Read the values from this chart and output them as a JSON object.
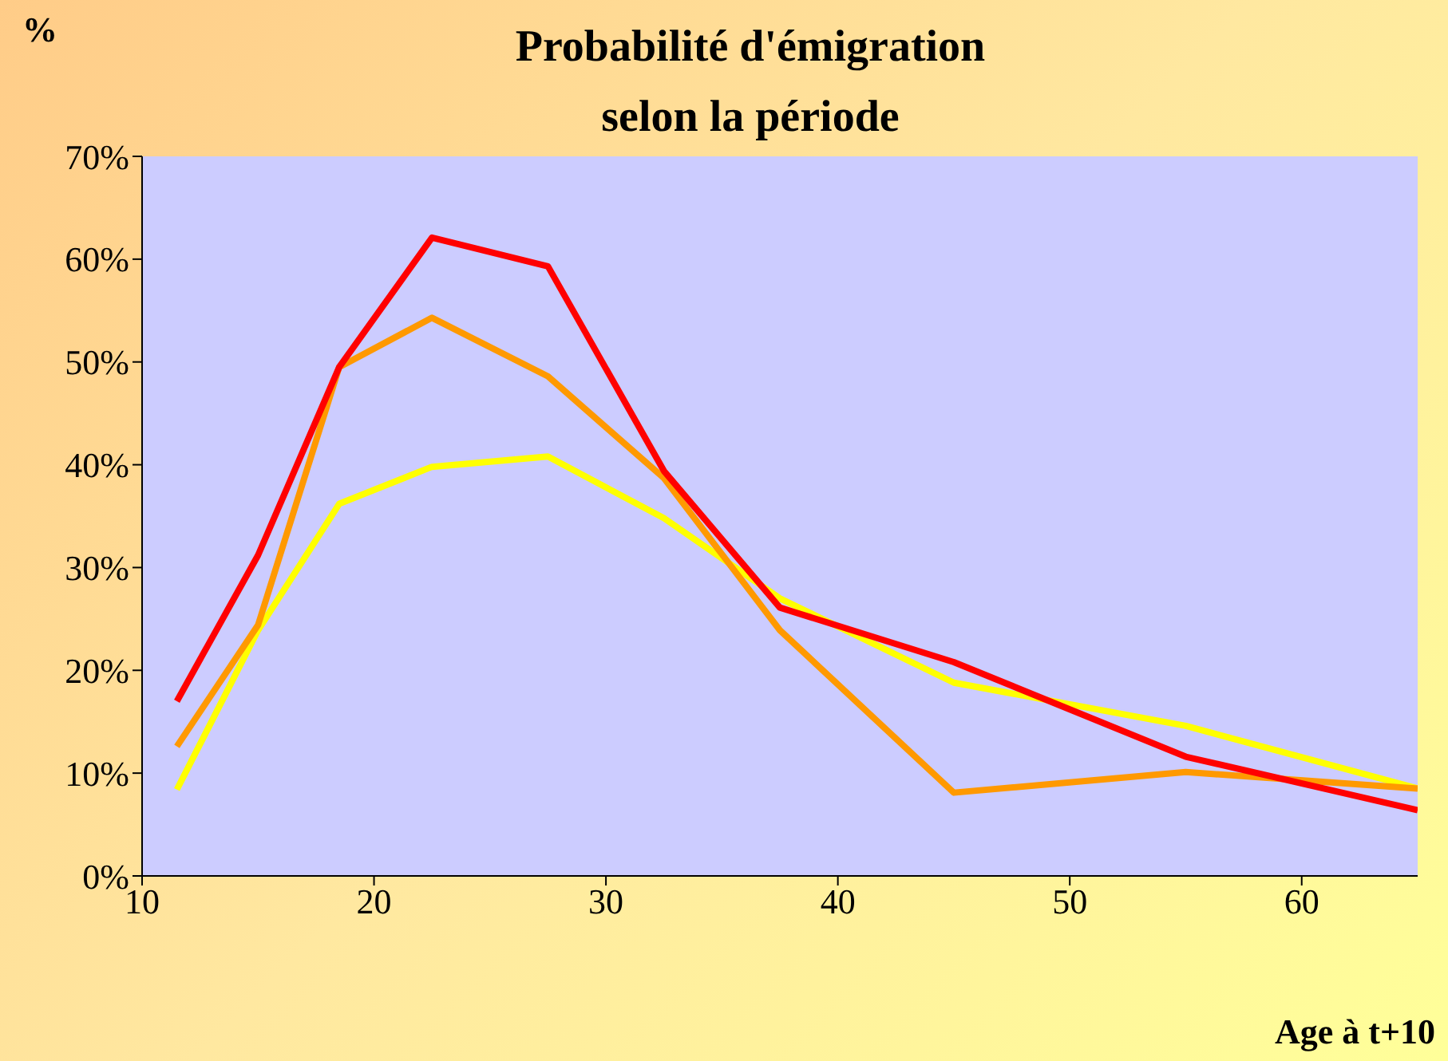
{
  "chart_data": {
    "type": "line",
    "title": "Probabilité d'émigration\nselon la période",
    "ylabel": "%",
    "xlabel": "Age à t+10",
    "x": [
      11.5,
      15,
      18.5,
      22.5,
      27.5,
      32.5,
      37.5,
      45,
      55,
      65
    ],
    "series": [
      {
        "color": "#ffff00",
        "values": [
          8.4,
          23.9,
          36.2,
          39.8,
          40.8,
          34.8,
          27,
          18.8,
          14.6,
          8.5
        ]
      },
      {
        "color": "#ff9900",
        "values": [
          12.6,
          24.4,
          49.5,
          54.3,
          48.6,
          38.7,
          23.9,
          8.1,
          10.1,
          8.5
        ]
      },
      {
        "color": "#ff0000",
        "values": [
          17,
          31.2,
          49.5,
          62.1,
          59.3,
          39.4,
          26.1,
          20.8,
          11.6,
          6.4
        ]
      }
    ],
    "xlim": [
      10,
      65
    ],
    "xticks": [
      10,
      20,
      30,
      40,
      50,
      60
    ],
    "ylim": [
      0,
      70
    ],
    "yticks": [
      {
        "value": 0,
        "label": "0%"
      },
      {
        "value": 10,
        "label": "10%"
      },
      {
        "value": 20,
        "label": "20%"
      },
      {
        "value": 30,
        "label": "30%"
      },
      {
        "value": 40,
        "label": "40%"
      },
      {
        "value": 50,
        "label": "50%"
      },
      {
        "value": 60,
        "label": "60%"
      },
      {
        "value": 70,
        "label": "70%"
      }
    ],
    "grid": false,
    "legend": false,
    "marker": "none",
    "line_style": "solid"
  }
}
